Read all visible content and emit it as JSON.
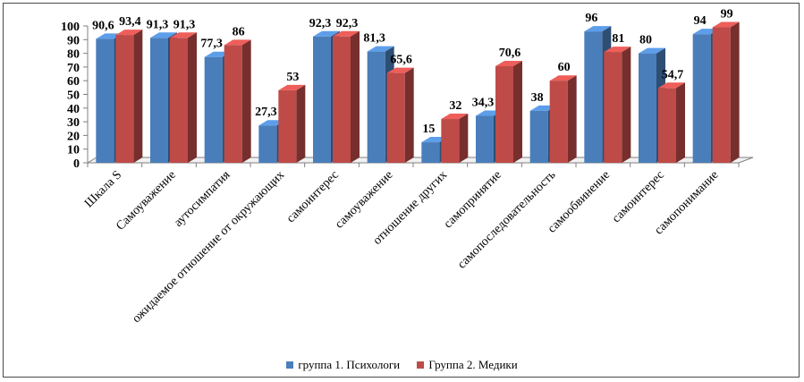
{
  "chart_data": {
    "type": "bar",
    "categories": [
      "Шкала S",
      "Самоуважение",
      "аутосимпатия",
      "ожидаемое отношение от окружающих",
      "самоинтерес",
      "самоуважение",
      "отношение других",
      "самопринятие",
      "самопоследовательность",
      "самообвинение",
      "самоинтерес",
      "самопонимание"
    ],
    "series": [
      {
        "name": "группа 1. Психологи",
        "color": "#4a7ebb",
        "values": [
          90.6,
          91.3,
          77.3,
          27.3,
          92.3,
          81.3,
          15,
          34.3,
          38,
          96,
          80,
          94
        ],
        "labels": [
          "90,6",
          "91,3",
          "77,3",
          "27,3",
          "92,3",
          "81,3",
          "15",
          "34,3",
          "38",
          "96",
          "80",
          "94"
        ]
      },
      {
        "name": "Группа 2. Медики",
        "color": "#be4b48",
        "values": [
          93.4,
          91.3,
          86,
          53,
          92.3,
          65.6,
          32,
          70.6,
          60,
          81,
          54.7,
          99
        ],
        "labels": [
          "93,4",
          "91,3",
          "86",
          "53",
          "92,3",
          "65,6",
          "32",
          "70,6",
          "60",
          "81",
          "54,7",
          "99"
        ]
      }
    ],
    "yticks": [
      0,
      10,
      20,
      30,
      40,
      50,
      60,
      70,
      80,
      90,
      100
    ],
    "ylim": [
      0,
      100
    ],
    "legend_position": "bottom"
  }
}
